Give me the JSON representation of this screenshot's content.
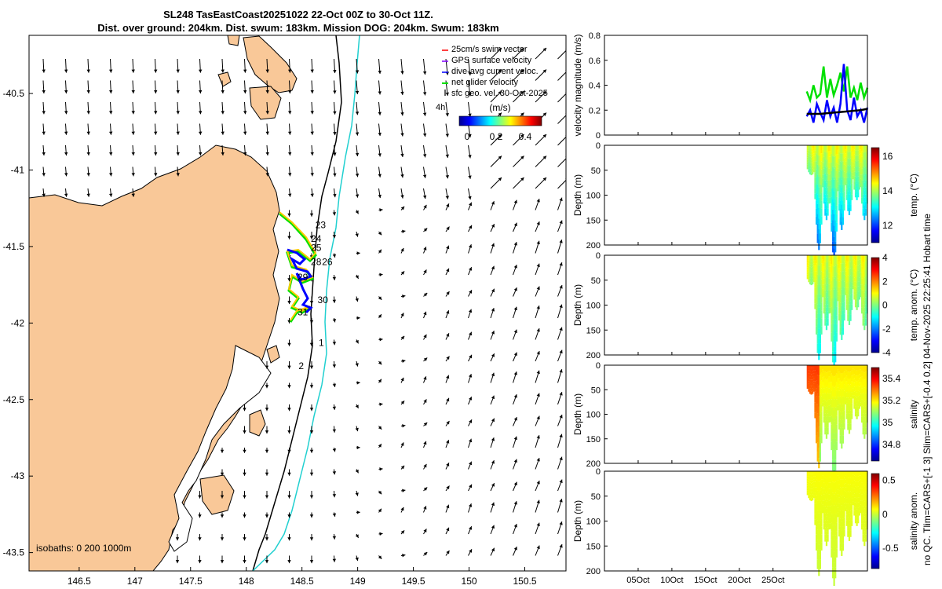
{
  "title": {
    "line1": "SL248 TasEastCoast20251022 22-Oct 00Z to 30-Oct 11Z.",
    "line2": "Dist. over ground: 204km. Dist. swum: 183km. Mission DOG: 204km. Swum: 183km"
  },
  "colors": {
    "land": "#f9c898",
    "isobath_200": "#000000",
    "isobath_1000": "#20d0d0",
    "gps_velocity": "#8000ff",
    "dive_avg": "#0000ff",
    "net_glider": "#00e000",
    "swim_vector": "#ff0000"
  },
  "map": {
    "legend": {
      "swim": "25cm/s swim vector",
      "gps": "GPS surface velocity",
      "dive": "dive-avg current veloc.",
      "net": "net glider velocity",
      "sfc": "sfc geo. vel. 30-Oct-2025",
      "scale_label": "4h"
    },
    "colorbar": {
      "label": "(m/s)",
      "ticks": [
        "0",
        "0.2",
        "0.4"
      ]
    },
    "isobaths_label": "isobaths: 0   200  1000m",
    "lon_ticks": [
      "146.5",
      "147",
      "147.5",
      "148",
      "148.5",
      "149",
      "149.5",
      "150",
      "150.5"
    ],
    "lat_ticks": [
      "-40.5",
      "-41",
      "-41.5",
      "-42",
      "-42.5",
      "-43",
      "-43.5"
    ],
    "day_labels": [
      {
        "t": "23",
        "lon": 148.62,
        "lat": -41.38
      },
      {
        "t": "24",
        "lon": 148.58,
        "lat": -41.47
      },
      {
        "t": "25",
        "lon": 148.58,
        "lat": -41.53
      },
      {
        "t": "28",
        "lon": 148.58,
        "lat": -41.62
      },
      {
        "t": "26",
        "lon": 148.68,
        "lat": -41.62
      },
      {
        "t": "29",
        "lon": 148.46,
        "lat": -41.72
      },
      {
        "t": "30",
        "lon": 148.64,
        "lat": -41.87
      },
      {
        "t": "31",
        "lon": 148.46,
        "lat": -41.95
      },
      {
        "t": "1",
        "lon": 148.65,
        "lat": -42.15
      },
      {
        "t": "2",
        "lon": 148.47,
        "lat": -42.3
      }
    ]
  },
  "side_label": "no QC. Tlim=CARS+[-1 3] Slim=CARS+[-0.4 0.2] 04-Nov-2025 22:25:41 Hobart time",
  "chart_data": [
    {
      "type": "line",
      "ylabel": "velocity magnitude (m/s)",
      "ylim": [
        0,
        0.8
      ],
      "yticks": [
        "0",
        "0.2",
        "0.4",
        "0.6",
        "0.8"
      ],
      "x_range_days": [
        -30,
        9
      ],
      "series": [
        {
          "key": "net",
          "color": "#00e000",
          "x": [
            0.0,
            0.5,
            1.0,
            1.5,
            2.0,
            2.5,
            3.0,
            3.5,
            4.0,
            4.5,
            5.0,
            5.5,
            6.0,
            6.5,
            7.0,
            7.5,
            8.0,
            8.5,
            9.0
          ],
          "y": [
            0.35,
            0.28,
            0.4,
            0.3,
            0.33,
            0.55,
            0.3,
            0.45,
            0.32,
            0.4,
            0.5,
            0.35,
            0.55,
            0.3,
            0.38,
            0.28,
            0.42,
            0.3,
            0.38
          ]
        },
        {
          "key": "dive",
          "color": "#0000ff",
          "x": [
            0.0,
            0.5,
            1.0,
            1.5,
            2.0,
            2.5,
            3.0,
            3.5,
            4.0,
            4.5,
            5.0,
            5.5,
            6.0,
            6.5,
            7.0,
            7.5,
            8.0,
            8.5,
            9.0
          ],
          "y": [
            0.15,
            0.2,
            0.1,
            0.25,
            0.18,
            0.12,
            0.28,
            0.15,
            0.22,
            0.1,
            0.25,
            0.57,
            0.2,
            0.12,
            0.3,
            0.15,
            0.2,
            0.1,
            0.22
          ]
        },
        {
          "key": "smooth",
          "color": "#000000",
          "x": [
            0,
            2,
            4,
            6,
            8,
            9
          ],
          "y": [
            0.17,
            0.17,
            0.18,
            0.19,
            0.2,
            0.21
          ]
        }
      ]
    },
    {
      "type": "heatmap",
      "ylabel": "Depth (m)",
      "cblabel": "temp. (°C)",
      "ylim": [
        0,
        200
      ],
      "yticks": [
        "0",
        "50",
        "100",
        "150",
        "200"
      ],
      "clim": [
        11,
        16.5
      ],
      "cbticks": [
        "12",
        "14",
        "16"
      ],
      "dive_depths": [
        20,
        170,
        110,
        190,
        130,
        100,
        70,
        110
      ]
    },
    {
      "type": "heatmap",
      "ylabel": "Depth (m)",
      "cblabel": "temp. anom. (°C)",
      "ylim": [
        0,
        200
      ],
      "yticks": [
        "0",
        "50",
        "100",
        "150",
        "200"
      ],
      "clim": [
        -4,
        4
      ],
      "cbticks": [
        "4",
        "2",
        "0",
        "-2",
        "-4"
      ],
      "dive_depths": [
        20,
        170,
        110,
        190,
        130,
        100,
        70,
        110
      ]
    },
    {
      "type": "heatmap",
      "ylabel": "Depth (m)",
      "cblabel": "salinity",
      "ylim": [
        0,
        200
      ],
      "yticks": [
        "0",
        "50",
        "100",
        "150",
        "200"
      ],
      "clim": [
        34.65,
        35.5
      ],
      "cbticks": [
        "35.4",
        "35.2",
        "35",
        "34.8"
      ],
      "dive_depths": [
        20,
        170,
        110,
        190,
        130,
        100,
        70,
        110
      ]
    },
    {
      "type": "heatmap",
      "ylabel": "Depth (m)",
      "cblabel": "salinity anom.",
      "ylim": [
        0,
        200
      ],
      "yticks": [
        "0",
        "50",
        "100",
        "150",
        "200"
      ],
      "clim": [
        -0.8,
        0.6
      ],
      "cbticks": [
        "0.5",
        "0",
        "-0.5"
      ],
      "dive_depths": [
        20,
        170,
        110,
        190,
        130,
        100,
        70,
        110
      ],
      "xticks": [
        "05Oct",
        "10Oct",
        "15Oct",
        "20Oct",
        "25Oct"
      ]
    }
  ]
}
